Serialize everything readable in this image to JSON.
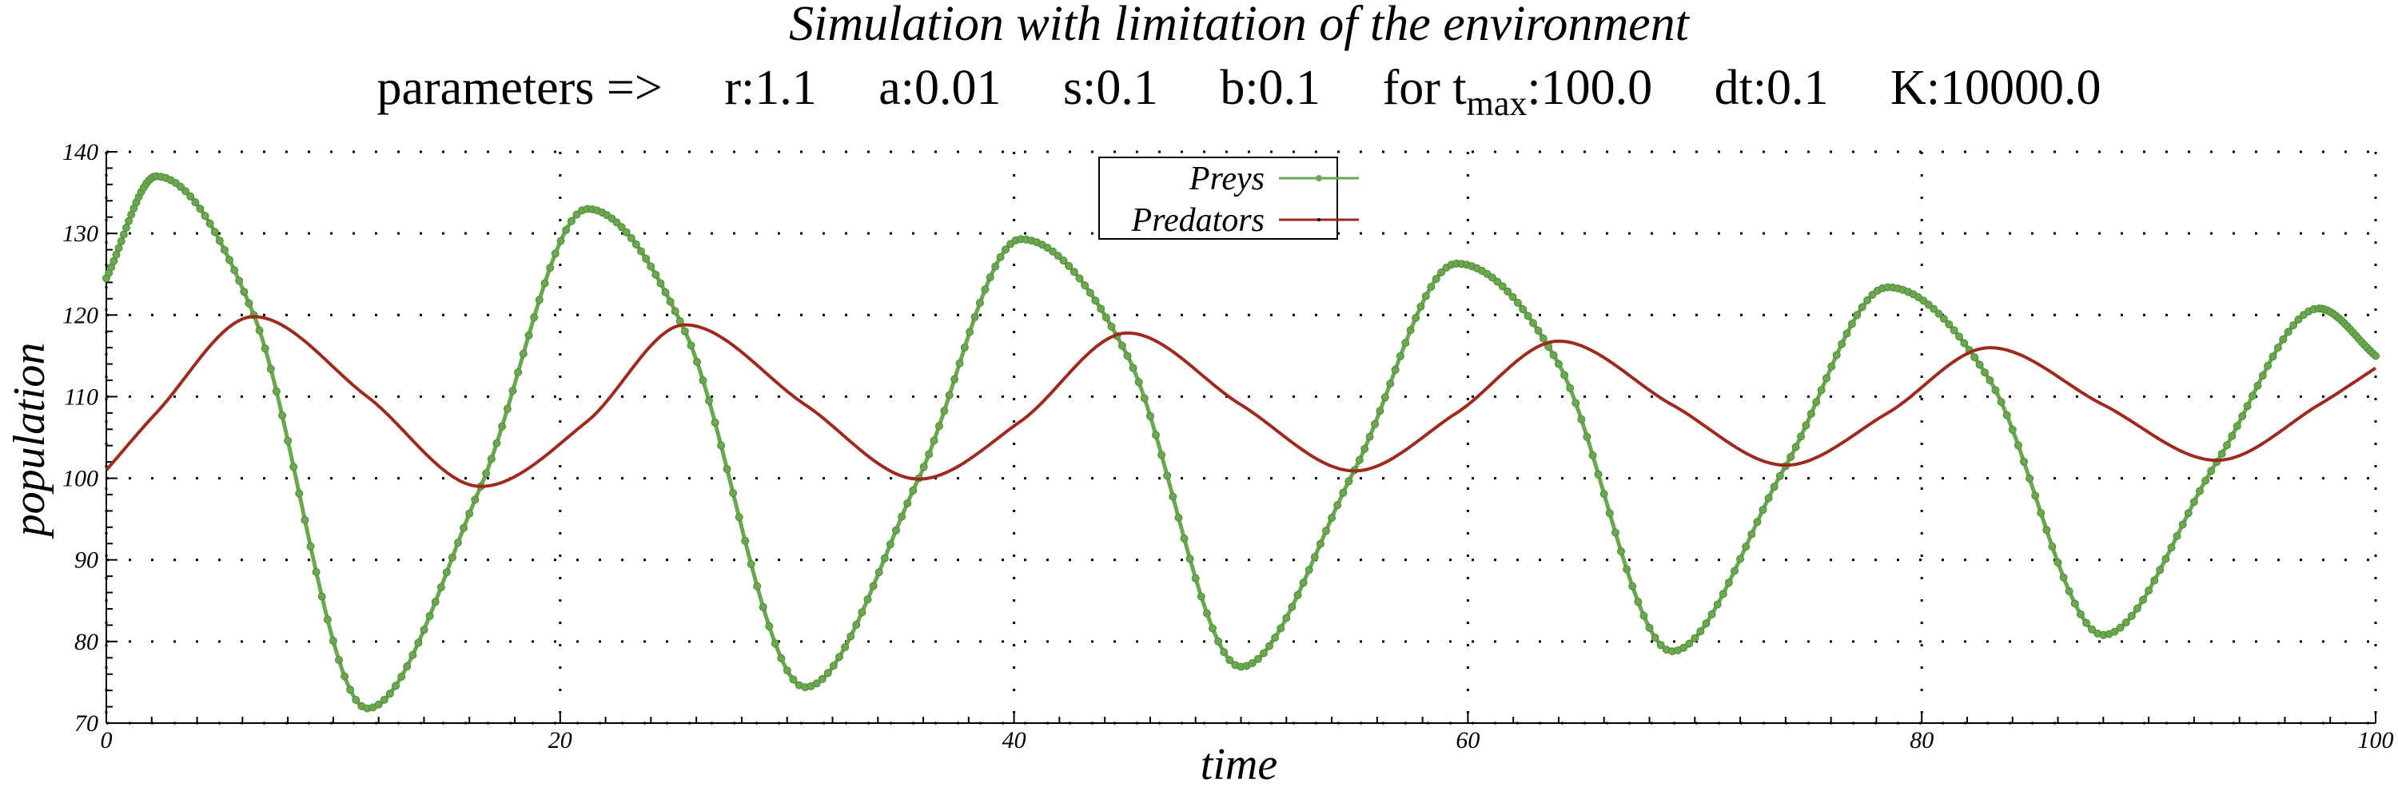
{
  "chart_data": {
    "type": "line",
    "title": "Simulation with limitation of the environment",
    "subtitle": {
      "prefix": "parameters =>",
      "params": [
        "r:1.1",
        "a:0.01",
        "s:0.1",
        "b:0.1"
      ],
      "tmax": {
        "pre": "for t",
        "sub": "max",
        "post": ":100.0"
      },
      "extra": [
        "dt:0.1",
        "K:10000.0"
      ]
    },
    "xlabel": "time",
    "ylabel": "population",
    "xlim": [
      0,
      100
    ],
    "ylim": [
      70,
      140
    ],
    "xticks": [
      0,
      20,
      40,
      60,
      80,
      100
    ],
    "yticks": [
      70,
      80,
      90,
      100,
      110,
      120,
      130,
      140
    ],
    "grid": true,
    "legend_position": "top-center",
    "series": [
      {
        "name": "Preys",
        "color": "#6aa84f",
        "marker": "circle",
        "points": [
          [
            0,
            124.5
          ],
          [
            2.2,
            137
          ],
          [
            6.5,
            120
          ],
          [
            11.5,
            71.8
          ],
          [
            16.5,
            99
          ],
          [
            21.2,
            133
          ],
          [
            25.5,
            118
          ],
          [
            30.8,
            74.4
          ],
          [
            35.8,
            100
          ],
          [
            40.3,
            129.3
          ],
          [
            45,
            115
          ],
          [
            50,
            76.9
          ],
          [
            55,
            101
          ],
          [
            59.5,
            126.3
          ],
          [
            64,
            114
          ],
          [
            69,
            78.8
          ],
          [
            74,
            101.5
          ],
          [
            78.5,
            123.4
          ],
          [
            83,
            112
          ],
          [
            88,
            80.8
          ],
          [
            93,
            102
          ],
          [
            97.5,
            120.8
          ],
          [
            100,
            115
          ]
        ]
      },
      {
        "name": "Predators",
        "color": "#9e2a1e",
        "marker": "none",
        "points": [
          [
            0,
            101
          ],
          [
            2.2,
            108
          ],
          [
            6.5,
            119.8
          ],
          [
            11.5,
            110
          ],
          [
            16.5,
            99
          ],
          [
            21.2,
            107
          ],
          [
            25.5,
            118.8
          ],
          [
            30.8,
            109
          ],
          [
            35.8,
            99.9
          ],
          [
            40.3,
            107
          ],
          [
            45,
            117.8
          ],
          [
            50,
            109
          ],
          [
            55,
            100.9
          ],
          [
            59.5,
            108
          ],
          [
            64,
            116.8
          ],
          [
            69,
            109
          ],
          [
            74,
            101.6
          ],
          [
            78.5,
            108
          ],
          [
            83,
            116
          ],
          [
            88,
            109
          ],
          [
            93,
            102.2
          ],
          [
            97.5,
            109
          ],
          [
            100,
            113.5
          ]
        ]
      }
    ]
  }
}
